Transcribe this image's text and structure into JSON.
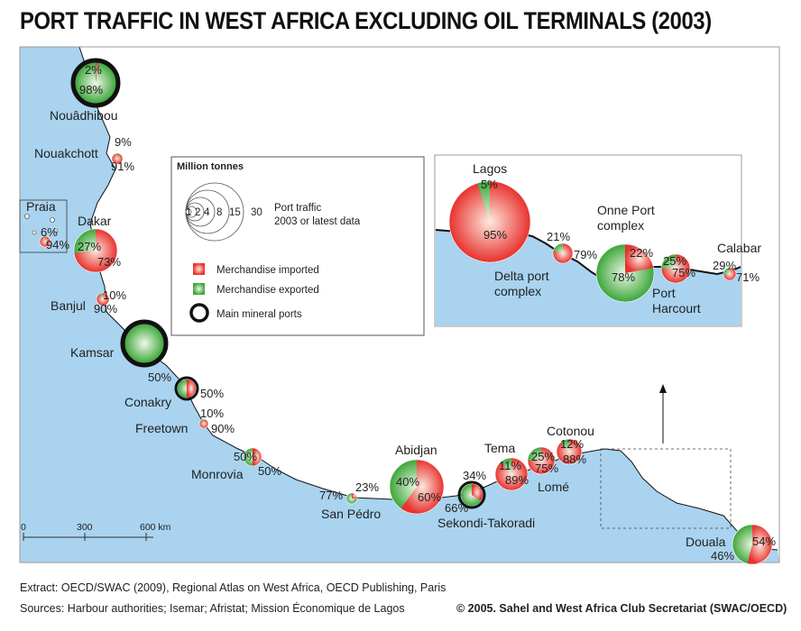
{
  "title": "PORT TRAFFIC IN WEST AFRICA EXCLUDING OIL TERMINALS (2003)",
  "legend": {
    "heading": "Million tonnes",
    "scale_values": [
      "1",
      "2",
      "4",
      "8",
      "15",
      "30"
    ],
    "scale_caption_line1": "Port traffic",
    "scale_caption_line2": "2003 or latest data",
    "imported_label": "Merchandise imported",
    "exported_label": "Merchandise exported",
    "mineral_label": "Main mineral ports"
  },
  "colors": {
    "imported": "#e8322e",
    "exported": "#3ea63a",
    "sea": "#a9d3ef",
    "mineral_ring": "#111111"
  },
  "ports": [
    {
      "name": "Nouâdhibou",
      "imported_label": "2%",
      "exported_label": "98%",
      "imported_pct": 2,
      "mineral": true
    },
    {
      "name": "Nouakchott",
      "imported_label": "91%",
      "exported_label": "9%",
      "imported_pct": 91,
      "mineral": false
    },
    {
      "name": "Praia",
      "imported_label": "94%",
      "exported_label": "6%",
      "imported_pct": 94,
      "mineral": false
    },
    {
      "name": "Dakar",
      "imported_label": "73%",
      "exported_label": "27%",
      "imported_pct": 73,
      "mineral": false
    },
    {
      "name": "Banjul",
      "imported_label": "90%",
      "exported_label": "10%",
      "imported_pct": 90,
      "mineral": false
    },
    {
      "name": "Kamsar",
      "imported_label": "",
      "exported_label": "",
      "imported_pct": 0,
      "mineral": true
    },
    {
      "name": "Conakry",
      "imported_label": "50%",
      "exported_label": "50%",
      "imported_pct": 50,
      "mineral": true
    },
    {
      "name": "Freetown",
      "imported_label": "90%",
      "exported_label": "10%",
      "imported_pct": 90,
      "mineral": false
    },
    {
      "name": "Monrovia",
      "imported_label": "50%",
      "exported_label": "50%",
      "imported_pct": 50,
      "mineral": false
    },
    {
      "name": "San Pédro",
      "imported_label": "23%",
      "exported_label": "77%",
      "imported_pct": 23,
      "mineral": false
    },
    {
      "name": "Abidjan",
      "imported_label": "60%",
      "exported_label": "40%",
      "imported_pct": 60,
      "mineral": false
    },
    {
      "name": "Sekondi-Takoradi",
      "imported_label": "34%",
      "exported_label": "66%",
      "imported_pct": 34,
      "mineral": true
    },
    {
      "name": "Tema",
      "imported_label": "89%",
      "exported_label": "11%",
      "imported_pct": 89,
      "mineral": false
    },
    {
      "name": "Lomé",
      "imported_label": "75%",
      "exported_label": "25%",
      "imported_pct": 75,
      "mineral": false
    },
    {
      "name": "Cotonou",
      "imported_label": "88%",
      "exported_label": "12%",
      "imported_pct": 88,
      "mineral": false
    },
    {
      "name": "Douala",
      "imported_label": "54%",
      "exported_label": "46%",
      "imported_pct": 54,
      "mineral": false
    }
  ],
  "inset_ports": [
    {
      "name": "Lagos",
      "imported_label": "95%",
      "exported_label": "5%",
      "imported_pct": 95
    },
    {
      "name": "Delta port complex",
      "imported_label": "79%",
      "exported_label": "21%",
      "imported_pct": 79
    },
    {
      "name": "Onne Port complex",
      "imported_label": "22%",
      "exported_label": "78%",
      "imported_pct": 22
    },
    {
      "name": "Port Harcourt",
      "imported_label": "75%",
      "exported_label": "25%",
      "imported_pct": 75
    },
    {
      "name": "Calabar",
      "imported_label": "71%",
      "exported_label": "29%",
      "imported_pct": 71
    }
  ],
  "scale_bar": {
    "ticks": [
      "0",
      "300",
      "600 km"
    ]
  },
  "footer": {
    "extract": "Extract: OECD/SWAC (2009), Regional Atlas on West Africa, OECD Publishing, Paris",
    "sources": "Sources: Harbour authorities; Isemar; Afristat; Mission Économique de Lagos",
    "credit": "© 2005. Sahel and West Africa Club Secretariat (SWAC/OECD)"
  }
}
